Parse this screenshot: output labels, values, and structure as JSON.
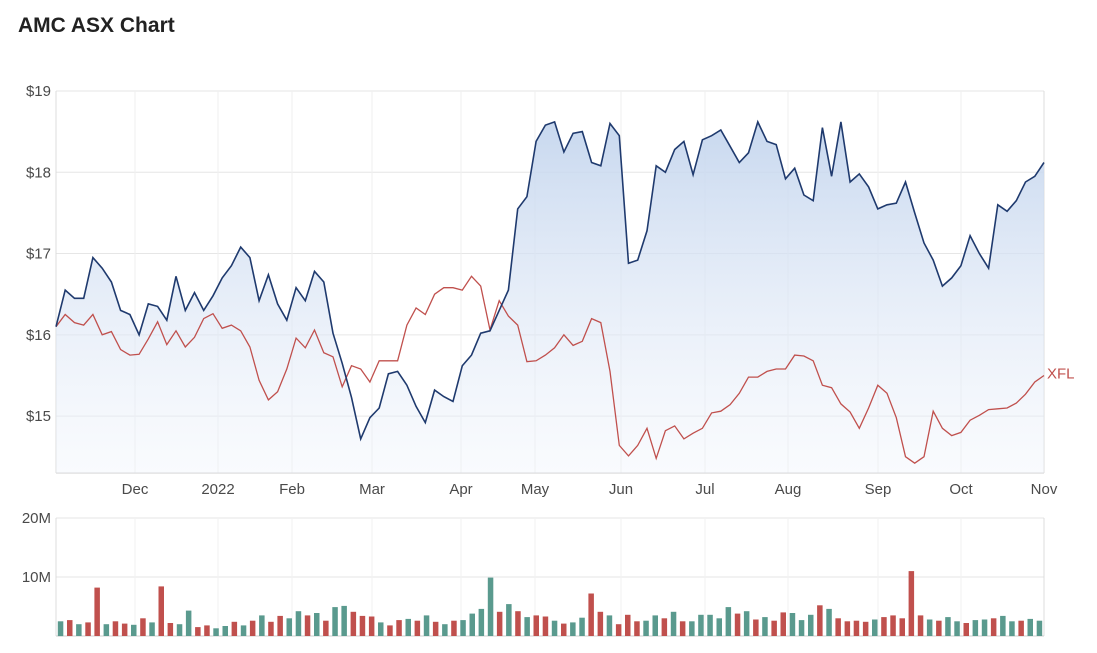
{
  "chart_data": [
    {
      "type": "area",
      "title": "AMC ASX Chart",
      "x_axis": {
        "tick_labels": [
          "Dec",
          "2022",
          "Feb",
          "Mar",
          "Apr",
          "May",
          "Jun",
          "Jul",
          "Aug",
          "Sep",
          "Oct",
          "Nov"
        ]
      },
      "y_axis": {
        "tick_labels": [
          "$19",
          "$18",
          "$17",
          "$16",
          "$15"
        ],
        "tick_values": [
          19,
          18,
          17,
          16,
          15
        ],
        "ylim": [
          14.3,
          19.0
        ]
      },
      "grid": true,
      "colors": {
        "primary": "#1f3a6e",
        "fill": "#c5d6ee",
        "comparison": "#c0504d"
      },
      "series": [
        {
          "name": "",
          "step": 10,
          "values": [
            16.1,
            16.55,
            16.45,
            16.45,
            16.95,
            16.82,
            16.65,
            16.3,
            16.25,
            16.0,
            16.38,
            16.35,
            16.18,
            16.72,
            16.3,
            16.52,
            16.3,
            16.48,
            16.7,
            16.85,
            17.08,
            16.95,
            16.42,
            16.74,
            16.38,
            16.18,
            16.58,
            16.42,
            16.78,
            16.65,
            16.02,
            15.65,
            15.23,
            14.72,
            14.98,
            15.1,
            15.52,
            15.55,
            15.38,
            15.12,
            14.92,
            15.32,
            15.24,
            15.18,
            15.62,
            15.75,
            16.02,
            16.05,
            16.3,
            16.55,
            17.55,
            17.7,
            18.38,
            18.58,
            18.62,
            18.25,
            18.48,
            18.5,
            18.12,
            18.08,
            18.6,
            18.45,
            16.88,
            16.92,
            17.28,
            18.08,
            18.0,
            18.28,
            18.38,
            17.97,
            18.4,
            18.45,
            18.52,
            18.32,
            18.12,
            18.24,
            18.62,
            18.38,
            18.34,
            17.92,
            18.05,
            17.72,
            17.65,
            18.55,
            17.95,
            18.62,
            17.88,
            17.98,
            17.82,
            17.55,
            17.6,
            17.62,
            17.88,
            17.5,
            17.13,
            16.92,
            16.6,
            16.7,
            16.85,
            17.22,
            17.0,
            16.82,
            17.6,
            17.52,
            17.65,
            17.88,
            17.95,
            18.12
          ]
        },
        {
          "name": "XFL",
          "step": 10,
          "values": [
            16.1,
            16.25,
            16.15,
            16.12,
            16.25,
            16.0,
            16.04,
            15.82,
            15.75,
            15.76,
            15.95,
            16.16,
            15.88,
            16.05,
            15.85,
            15.97,
            16.2,
            16.26,
            16.08,
            16.12,
            16.05,
            15.85,
            15.44,
            15.2,
            15.3,
            15.58,
            15.96,
            15.84,
            16.06,
            15.78,
            15.73,
            15.36,
            15.62,
            15.58,
            15.42,
            15.68,
            15.68,
            15.68,
            16.12,
            16.33,
            16.25,
            16.5,
            16.58,
            16.58,
            16.55,
            16.72,
            16.6,
            16.06,
            16.42,
            16.23,
            16.12,
            15.67,
            15.68,
            15.75,
            15.84,
            16.0,
            15.87,
            15.92,
            16.2,
            16.15,
            15.55,
            14.64,
            14.51,
            14.64,
            14.85,
            14.48,
            14.82,
            14.88,
            14.72,
            14.79,
            14.85,
            15.04,
            15.06,
            15.14,
            15.28,
            15.48,
            15.48,
            15.55,
            15.58,
            15.58,
            15.75,
            15.74,
            15.68,
            15.38,
            15.35,
            15.15,
            15.05,
            14.85,
            15.1,
            15.38,
            15.28,
            14.98,
            14.5,
            14.42,
            14.5,
            15.06,
            14.85,
            14.76,
            14.8,
            14.95,
            15.01,
            15.08,
            15.09,
            15.1,
            15.16,
            15.27,
            15.42,
            15.5
          ]
        }
      ]
    },
    {
      "type": "bar",
      "y_axis": {
        "tick_labels": [
          "20M",
          "10M"
        ],
        "tick_values": [
          20000000,
          10000000
        ],
        "ylim": [
          0,
          20000000
        ]
      },
      "grid": true,
      "colors": {
        "up": "#5a9a8e",
        "down": "#c0504d"
      },
      "step": 10,
      "values": [
        2.5,
        2.7,
        2.0,
        2.3,
        8.2,
        2.0,
        2.5,
        2.1,
        1.9,
        3.0,
        2.3,
        8.4,
        2.2,
        2.0,
        4.3,
        1.5,
        1.8,
        1.3,
        1.7,
        2.4,
        1.8,
        2.6,
        3.5,
        2.4,
        3.4,
        3.0,
        4.2,
        3.5,
        3.9,
        2.6,
        4.9,
        5.1,
        4.1,
        3.4,
        3.3,
        2.3,
        1.8,
        2.7,
        2.9,
        2.6,
        3.5,
        2.4,
        2.0,
        2.6,
        2.7,
        3.8,
        4.6,
        9.9,
        4.1,
        5.4,
        4.2,
        3.2,
        3.5,
        3.3,
        2.6,
        2.1,
        2.3,
        3.1,
        7.2,
        4.1,
        3.5,
        2.0,
        3.6,
        2.5,
        2.6,
        3.5,
        3.0,
        4.1,
        2.5,
        2.5,
        3.6,
        3.6,
        3.0,
        4.9,
        3.8,
        4.2,
        2.8,
        3.2,
        2.6,
        4.0,
        3.9,
        2.7,
        3.6,
        5.2,
        4.6,
        3.0,
        2.5,
        2.6,
        2.4,
        2.8,
        3.2,
        3.5,
        3.0,
        11.0,
        3.5,
        2.8,
        2.6,
        3.2,
        2.5,
        2.2,
        2.7,
        2.8,
        3.0,
        3.4,
        2.5,
        2.6,
        2.9,
        2.6
      ],
      "directions": [
        "up",
        "down",
        "up",
        "down",
        "down",
        "up",
        "down",
        "down",
        "up",
        "down",
        "up",
        "down",
        "down",
        "up",
        "up",
        "down",
        "down",
        "up",
        "up",
        "down",
        "up",
        "down",
        "up",
        "down",
        "down",
        "up",
        "up",
        "down",
        "up",
        "down",
        "up",
        "up",
        "down",
        "down",
        "down",
        "up",
        "down",
        "down",
        "up",
        "down",
        "up",
        "down",
        "up",
        "down",
        "up",
        "up",
        "up",
        "up",
        "down",
        "up",
        "down",
        "up",
        "down",
        "down",
        "up",
        "down",
        "up",
        "up",
        "down",
        "down",
        "up",
        "down",
        "down",
        "down",
        "up",
        "up",
        "down",
        "up",
        "down",
        "up",
        "up",
        "up",
        "up",
        "up",
        "down",
        "up",
        "down",
        "up",
        "down",
        "down",
        "up",
        "up",
        "up",
        "down",
        "up",
        "down",
        "down",
        "down",
        "down",
        "up",
        "down",
        "down",
        "down",
        "down",
        "down",
        "up",
        "down",
        "up",
        "up",
        "down",
        "up",
        "up",
        "down",
        "up",
        "up",
        "down",
        "up",
        "up"
      ]
    }
  ]
}
